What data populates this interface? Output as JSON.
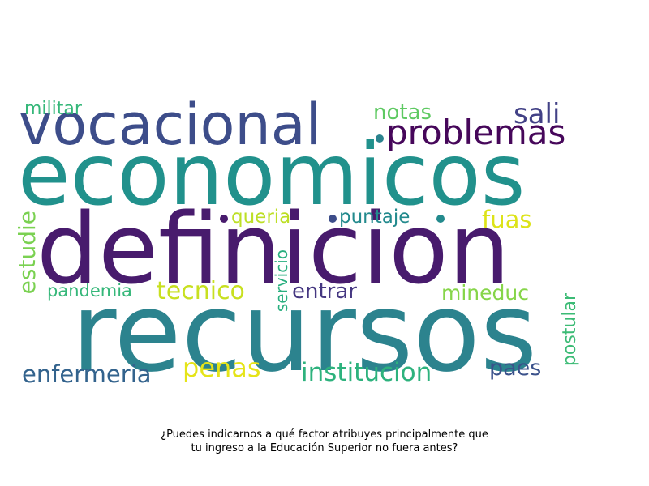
{
  "words": [
    {
      "text": "recursos",
      "color": "#2c838e"
    },
    {
      "text": "definicion",
      "color": "#481b6d"
    },
    {
      "text": "economicos",
      "color": "#21918c"
    },
    {
      "text": "vocacional",
      "color": "#3d4d8a"
    },
    {
      "text": "problemas",
      "color": "#46075a"
    },
    {
      "text": "sali",
      "color": "#424186"
    },
    {
      "text": "notas",
      "color": "#5ec962"
    },
    {
      "text": "militar",
      "color": "#35b779"
    },
    {
      "text": "queria",
      "color": "#bddf26"
    },
    {
      "text": "puntaje",
      "color": "#238a8d"
    },
    {
      "text": "fuas",
      "color": "#dde318"
    },
    {
      "text": "estudie",
      "color": "#7ad151"
    },
    {
      "text": "pandemia",
      "color": "#35b779"
    },
    {
      "text": "tecnico",
      "color": "#c8e020"
    },
    {
      "text": "servicio",
      "color": "#29af7f"
    },
    {
      "text": "entrar",
      "color": "#453781"
    },
    {
      "text": "mineduc",
      "color": "#86d549"
    },
    {
      "text": "postular",
      "color": "#3bbb75"
    },
    {
      "text": "enfermeria",
      "color": "#33638d"
    },
    {
      "text": "penas",
      "color": "#e5e419"
    },
    {
      "text": "institucion",
      "color": "#2db27d"
    },
    {
      "text": "paes",
      "color": "#3b528b"
    }
  ],
  "dot_colors": [
    "#2c838e",
    "#481b6d",
    "#3d4d8a",
    "#238a8d"
  ],
  "caption": {
    "line1": "¿Puedes indicarnos a qué factor atribuyes principalmente que",
    "line2": "tu ingreso a la Educación Superior no fuera antes?"
  }
}
